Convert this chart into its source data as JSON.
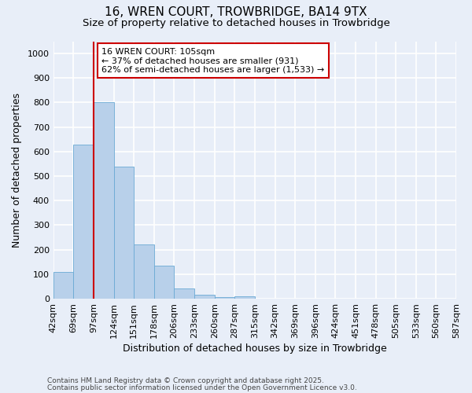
{
  "title_line1": "16, WREN COURT, TROWBRIDGE, BA14 9TX",
  "title_line2": "Size of property relative to detached houses in Trowbridge",
  "xlabel": "Distribution of detached houses by size in Trowbridge",
  "ylabel": "Number of detached properties",
  "bar_values": [
    110,
    630,
    800,
    540,
    220,
    135,
    42,
    15,
    8,
    10,
    0,
    0,
    0,
    0,
    0,
    0,
    0,
    0,
    0,
    0
  ],
  "bin_labels": [
    "42sqm",
    "69sqm",
    "97sqm",
    "124sqm",
    "151sqm",
    "178sqm",
    "206sqm",
    "233sqm",
    "260sqm",
    "287sqm",
    "315sqm",
    "342sqm",
    "369sqm",
    "396sqm",
    "424sqm",
    "451sqm",
    "478sqm",
    "505sqm",
    "533sqm",
    "560sqm",
    "587sqm"
  ],
  "bar_color": "#b8d0ea",
  "bar_edge_color": "#6aaad4",
  "red_line_x": 2,
  "red_line_color": "#cc0000",
  "annotation_box_text": "16 WREN COURT: 105sqm\n← 37% of detached houses are smaller (931)\n62% of semi-detached houses are larger (1,533) →",
  "annotation_box_facecolor": "white",
  "annotation_box_edgecolor": "#cc0000",
  "ylim": [
    0,
    1050
  ],
  "yticks": [
    0,
    100,
    200,
    300,
    400,
    500,
    600,
    700,
    800,
    900,
    1000
  ],
  "footer_line1": "Contains HM Land Registry data © Crown copyright and database right 2025.",
  "footer_line2": "Contains public sector information licensed under the Open Government Licence v3.0.",
  "bg_color": "#e8eef8",
  "grid_color": "white",
  "title1_fontsize": 11,
  "title2_fontsize": 9.5,
  "axis_label_fontsize": 9,
  "tick_fontsize": 8,
  "annot_fontsize": 8,
  "footer_fontsize": 6.5
}
